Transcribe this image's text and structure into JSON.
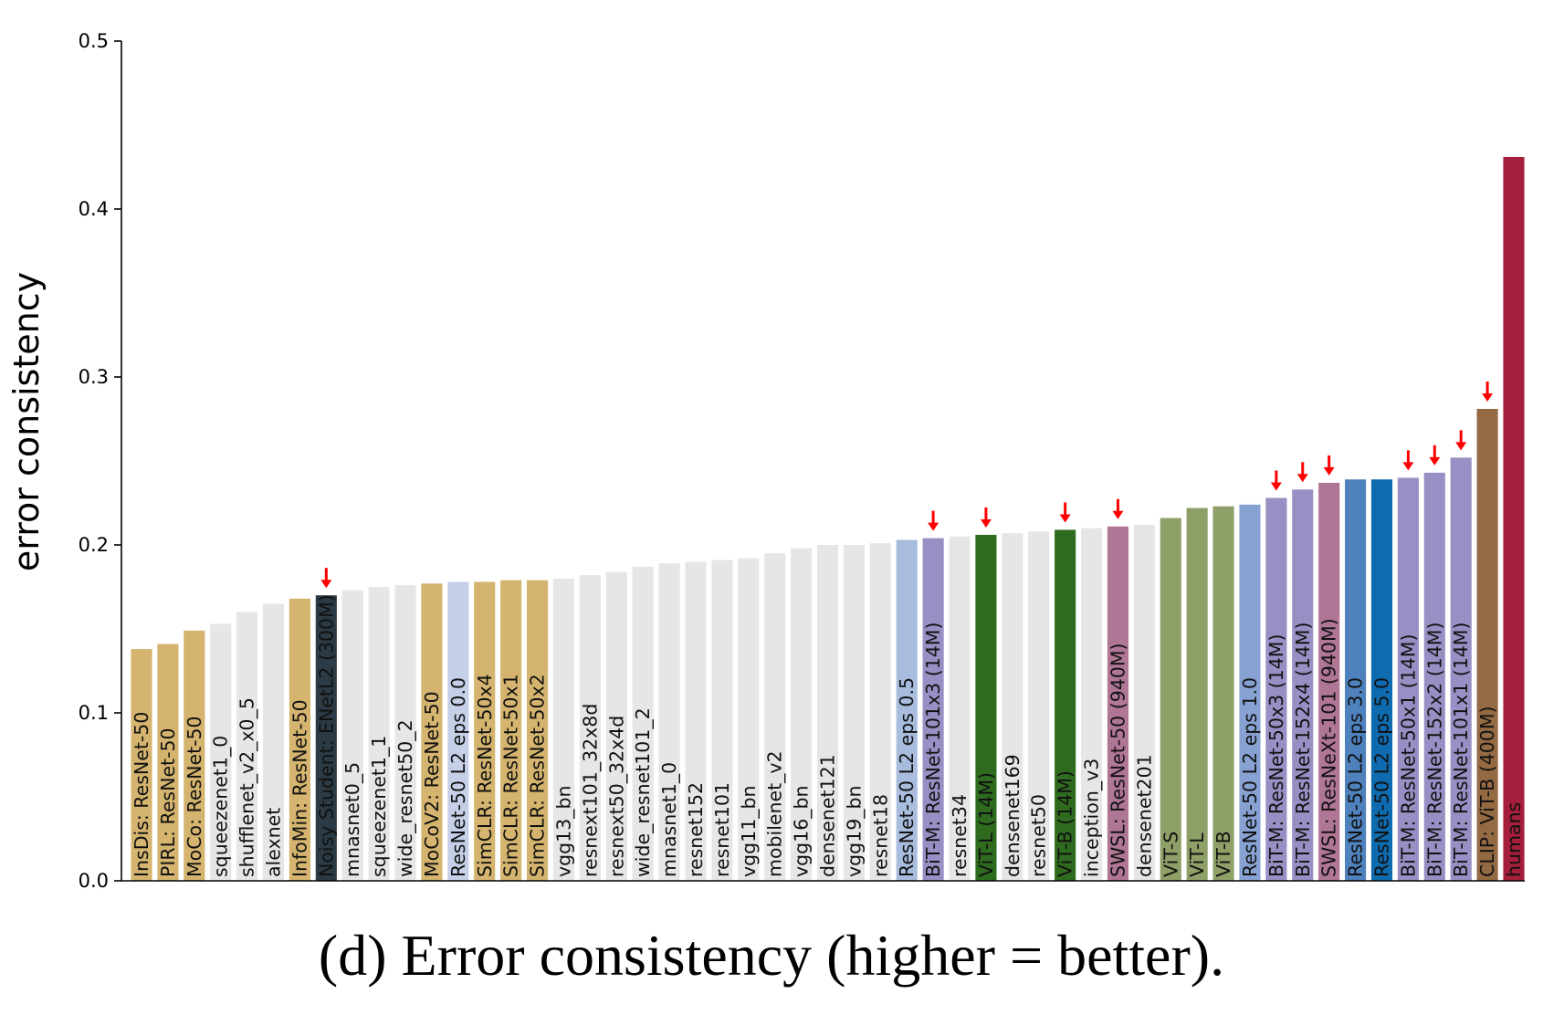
{
  "chart_data": {
    "type": "bar",
    "title": "",
    "xlabel": "",
    "ylabel": "error consistency",
    "ylim": [
      0.0,
      0.5
    ],
    "yticks": [
      "0.0",
      "0.1",
      "0.2",
      "0.3",
      "0.4",
      "0.5"
    ],
    "bars": [
      {
        "label": "InsDis: ResNet-50",
        "value": 0.138,
        "color": "#d4b46e",
        "arrow": false
      },
      {
        "label": "PIRL: ResNet-50",
        "value": 0.141,
        "color": "#d4b46e",
        "arrow": false
      },
      {
        "label": "MoCo: ResNet-50",
        "value": 0.149,
        "color": "#d4b46e",
        "arrow": false
      },
      {
        "label": "squeezenet1_0",
        "value": 0.153,
        "color": "#e6e6e6",
        "arrow": false
      },
      {
        "label": "shufflenet_v2_x0_5",
        "value": 0.16,
        "color": "#e6e6e6",
        "arrow": false
      },
      {
        "label": "alexnet",
        "value": 0.165,
        "color": "#e6e6e6",
        "arrow": false
      },
      {
        "label": "InfoMin: ResNet-50",
        "value": 0.168,
        "color": "#d4b46e",
        "arrow": false
      },
      {
        "label": "Noisy Student: ENetL2 (300M)",
        "value": 0.17,
        "color": "#2b3a44",
        "arrow": true
      },
      {
        "label": "mnasnet0_5",
        "value": 0.173,
        "color": "#e6e6e6",
        "arrow": false
      },
      {
        "label": "squeezenet1_1",
        "value": 0.175,
        "color": "#e6e6e6",
        "arrow": false
      },
      {
        "label": "wide_resnet50_2",
        "value": 0.176,
        "color": "#e6e6e6",
        "arrow": false
      },
      {
        "label": "MoCoV2: ResNet-50",
        "value": 0.177,
        "color": "#d4b46e",
        "arrow": false
      },
      {
        "label": "ResNet-50 L2 eps 0.0",
        "value": 0.178,
        "color": "#c6cfe8",
        "arrow": false
      },
      {
        "label": "SimCLR: ResNet-50x4",
        "value": 0.178,
        "color": "#d4b46e",
        "arrow": false
      },
      {
        "label": "SimCLR: ResNet-50x1",
        "value": 0.179,
        "color": "#d4b46e",
        "arrow": false
      },
      {
        "label": "SimCLR: ResNet-50x2",
        "value": 0.179,
        "color": "#d4b46e",
        "arrow": false
      },
      {
        "label": "vgg13_bn",
        "value": 0.18,
        "color": "#e6e6e6",
        "arrow": false
      },
      {
        "label": "resnext101_32x8d",
        "value": 0.182,
        "color": "#e6e6e6",
        "arrow": false
      },
      {
        "label": "resnext50_32x4d",
        "value": 0.184,
        "color": "#e6e6e6",
        "arrow": false
      },
      {
        "label": "wide_resnet101_2",
        "value": 0.187,
        "color": "#e6e6e6",
        "arrow": false
      },
      {
        "label": "mnasnet1_0",
        "value": 0.189,
        "color": "#e6e6e6",
        "arrow": false
      },
      {
        "label": "resnet152",
        "value": 0.19,
        "color": "#e6e6e6",
        "arrow": false
      },
      {
        "label": "resnet101",
        "value": 0.191,
        "color": "#e6e6e6",
        "arrow": false
      },
      {
        "label": "vgg11_bn",
        "value": 0.192,
        "color": "#e6e6e6",
        "arrow": false
      },
      {
        "label": "mobilenet_v2",
        "value": 0.195,
        "color": "#e6e6e6",
        "arrow": false
      },
      {
        "label": "vgg16_bn",
        "value": 0.198,
        "color": "#e6e6e6",
        "arrow": false
      },
      {
        "label": "densenet121",
        "value": 0.2,
        "color": "#e6e6e6",
        "arrow": false
      },
      {
        "label": "vgg19_bn",
        "value": 0.2,
        "color": "#e6e6e6",
        "arrow": false
      },
      {
        "label": "resnet18",
        "value": 0.201,
        "color": "#e6e6e6",
        "arrow": false
      },
      {
        "label": "ResNet-50 L2 eps 0.5",
        "value": 0.203,
        "color": "#a8bcdd",
        "arrow": false
      },
      {
        "label": "BiT-M: ResNet-101x3 (14M)",
        "value": 0.204,
        "color": "#9a8fc4",
        "arrow": true
      },
      {
        "label": "resnet34",
        "value": 0.205,
        "color": "#e6e6e6",
        "arrow": false
      },
      {
        "label": "ViT-L (14M)",
        "value": 0.206,
        "color": "#2e6b1f",
        "arrow": true
      },
      {
        "label": "densenet169",
        "value": 0.207,
        "color": "#e6e6e6",
        "arrow": false
      },
      {
        "label": "resnet50",
        "value": 0.208,
        "color": "#e6e6e6",
        "arrow": false
      },
      {
        "label": "ViT-B (14M)",
        "value": 0.209,
        "color": "#2e6b1f",
        "arrow": true
      },
      {
        "label": "inception_v3",
        "value": 0.21,
        "color": "#e6e6e6",
        "arrow": false
      },
      {
        "label": "SWSL: ResNet-50 (940M)",
        "value": 0.211,
        "color": "#b07696",
        "arrow": true
      },
      {
        "label": "densenet201",
        "value": 0.212,
        "color": "#e6e6e6",
        "arrow": false
      },
      {
        "label": "ViT-S",
        "value": 0.216,
        "color": "#8ea068",
        "arrow": false
      },
      {
        "label": "ViT-L",
        "value": 0.222,
        "color": "#8ea068",
        "arrow": false
      },
      {
        "label": "ViT-B",
        "value": 0.223,
        "color": "#8ea068",
        "arrow": false
      },
      {
        "label": "ResNet-50 L2 eps 1.0",
        "value": 0.224,
        "color": "#87a2d2",
        "arrow": false
      },
      {
        "label": "BiT-M: ResNet-50x3 (14M)",
        "value": 0.228,
        "color": "#9a8fc4",
        "arrow": true
      },
      {
        "label": "BiT-M: ResNet-152x4 (14M)",
        "value": 0.233,
        "color": "#9a8fc4",
        "arrow": true
      },
      {
        "label": "SWSL: ResNeXt-101 (940M)",
        "value": 0.237,
        "color": "#b07696",
        "arrow": true
      },
      {
        "label": "ResNet-50 L2 eps 3.0",
        "value": 0.239,
        "color": "#4f81bd",
        "arrow": false
      },
      {
        "label": "ResNet-50 L2 eps 5.0",
        "value": 0.239,
        "color": "#0e6bb0",
        "arrow": false
      },
      {
        "label": "BiT-M: ResNet-50x1 (14M)",
        "value": 0.24,
        "color": "#9a8fc4",
        "arrow": true
      },
      {
        "label": "BiT-M: ResNet-152x2 (14M)",
        "value": 0.243,
        "color": "#9a8fc4",
        "arrow": true
      },
      {
        "label": "BiT-M: ResNet-101x1 (14M)",
        "value": 0.252,
        "color": "#9a8fc4",
        "arrow": true
      },
      {
        "label": "CLIP: ViT-B (400M)",
        "value": 0.281,
        "color": "#946a43",
        "arrow": true
      },
      {
        "label": "humans",
        "value": 0.431,
        "color": "#a51f3c",
        "arrow": false
      }
    ],
    "arrow_color": "#ff0000"
  },
  "caption": "(d) Error consistency (higher = better)."
}
